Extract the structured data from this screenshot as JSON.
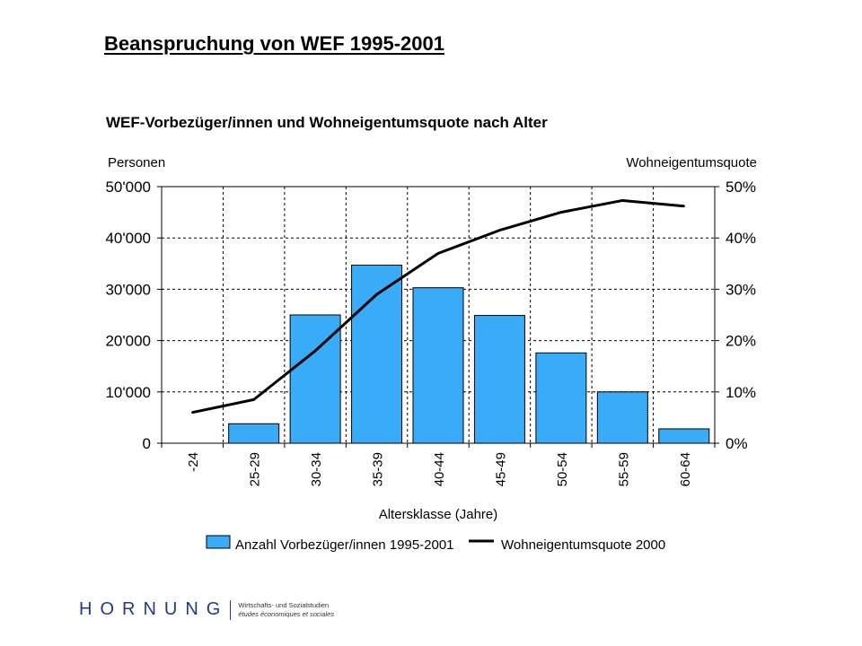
{
  "slide": {
    "title": "Beanspruchung von WEF 1995-2001"
  },
  "chart_data": {
    "type": "bar",
    "title": "WEF-Vorbezüger/innen und Wohneigentumsquote nach Alter",
    "xlabel": "Altersklasse (Jahre)",
    "ylabel_left": "Personen",
    "ylabel_right": "Wohneigentumsquote",
    "categories": [
      "-24",
      "25-29",
      "30-34",
      "35-39",
      "40-44",
      "45-49",
      "50-54",
      "55-59",
      "60-64"
    ],
    "ylim_left": [
      0,
      50000
    ],
    "ylim_right": [
      0,
      50
    ],
    "yticks_left": [
      "0",
      "10'000",
      "20'000",
      "30'000",
      "40'000",
      "50'000"
    ],
    "yticks_right": [
      "0%",
      "10%",
      "20%",
      "30%",
      "40%",
      "50%"
    ],
    "grid": true,
    "legend_position": "bottom",
    "series": [
      {
        "name": "Anzahl Vorbezüger/innen 1995-2001",
        "type": "bar",
        "axis": "left",
        "color": "#3aabf7",
        "values": [
          0,
          3800,
          25000,
          34700,
          30300,
          24900,
          17600,
          10000,
          2800
        ]
      },
      {
        "name": "Wohneigentumsquote 2000",
        "type": "line",
        "axis": "right",
        "color": "#000000",
        "values": [
          6.0,
          8.5,
          18.0,
          29.0,
          37.0,
          41.5,
          45.0,
          47.3,
          46.2
        ]
      }
    ]
  },
  "logo": {
    "wordmark": "HORNUNG",
    "line1": "Wirtschafts- und Sozialstudien",
    "line2": "études économiques et sociales",
    "color": "#1f3a8a"
  }
}
